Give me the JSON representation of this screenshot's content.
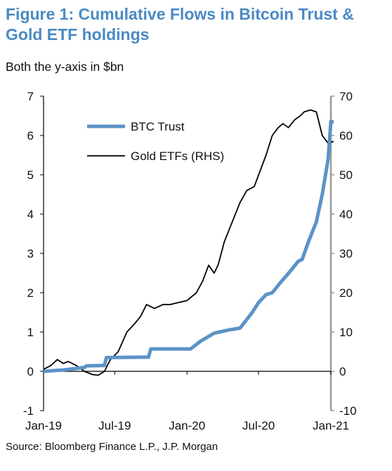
{
  "title": "Figure 1: Cumulative Flows in Bitcoin Trust & Gold ETF holdings",
  "subtitle": "Both the y-axis in $bn",
  "source": "Source:  Bloomberg Finance L.P., J.P. Morgan",
  "chart_data": {
    "type": "line",
    "x_ticks": [
      "Jan-19",
      "Jul-19",
      "Jan-20",
      "Jul-20",
      "Jan-21"
    ],
    "y_left": {
      "ylim": [
        -1,
        7
      ],
      "ticks": [
        "-1",
        "0",
        "1",
        "2",
        "3",
        "4",
        "5",
        "6",
        "7"
      ]
    },
    "y_right": {
      "ylim": [
        -10,
        70
      ],
      "ticks": [
        "-10",
        "0",
        "10",
        "20",
        "30",
        "40",
        "50",
        "60",
        "70"
      ]
    },
    "legend_position": "top-left",
    "grid": false,
    "colors": {
      "btc": "#5b93c8",
      "gold": "#000000",
      "right_axis": "#9a9a9a"
    },
    "series": [
      {
        "name": "BTC Trust",
        "axis": "left",
        "x": [
          "2019-01-01",
          "2019-02-15",
          "2019-03-15",
          "2019-04-15",
          "2019-04-20",
          "2019-06-05",
          "2019-06-10",
          "2019-09-25",
          "2019-10-01",
          "2020-01-10",
          "2020-02-05",
          "2020-03-10",
          "2020-04-15",
          "2020-05-15",
          "2020-06-15",
          "2020-07-01",
          "2020-07-20",
          "2020-08-05",
          "2020-08-25",
          "2020-09-20",
          "2020-10-10",
          "2020-10-20",
          "2020-11-05",
          "2020-11-25",
          "2020-12-10",
          "2020-12-25",
          "2021-01-01",
          "2021-01-08"
        ],
        "values": [
          0.0,
          0.03,
          0.06,
          0.1,
          0.14,
          0.15,
          0.35,
          0.36,
          0.57,
          0.57,
          0.77,
          0.97,
          1.05,
          1.1,
          1.5,
          1.75,
          1.95,
          2.0,
          2.25,
          2.55,
          2.8,
          2.85,
          3.3,
          3.8,
          4.5,
          5.4,
          6.35,
          6.35
        ]
      },
      {
        "name": "Gold ETFs (RHS)",
        "axis": "right",
        "x": [
          "2019-01-01",
          "2019-01-20",
          "2019-02-05",
          "2019-02-20",
          "2019-03-05",
          "2019-03-25",
          "2019-04-15",
          "2019-05-05",
          "2019-05-20",
          "2019-06-05",
          "2019-06-20",
          "2019-07-10",
          "2019-08-01",
          "2019-08-20",
          "2019-09-05",
          "2019-09-20",
          "2019-10-10",
          "2019-11-01",
          "2019-11-20",
          "2019-12-10",
          "2020-01-01",
          "2020-01-25",
          "2020-02-10",
          "2020-02-25",
          "2020-03-10",
          "2020-03-20",
          "2020-04-05",
          "2020-04-25",
          "2020-05-15",
          "2020-06-01",
          "2020-06-20",
          "2020-07-05",
          "2020-07-20",
          "2020-08-05",
          "2020-08-20",
          "2020-09-01",
          "2020-09-15",
          "2020-10-01",
          "2020-10-15",
          "2020-10-25",
          "2020-11-10",
          "2020-11-25",
          "2020-12-10",
          "2020-12-25",
          "2021-01-08"
        ],
        "values": [
          0.5,
          1.5,
          3.0,
          2.0,
          2.5,
          1.5,
          0.0,
          -0.8,
          -1.0,
          0.0,
          3.0,
          5.0,
          10.0,
          12.0,
          14.0,
          17.0,
          16.0,
          17.0,
          17.0,
          17.5,
          18.0,
          20.0,
          23.0,
          27.0,
          25.0,
          27.0,
          33.0,
          38.0,
          43.0,
          46.0,
          47.0,
          51.0,
          55.0,
          60.0,
          62.0,
          63.0,
          62.0,
          64.0,
          65.0,
          66.0,
          66.5,
          66.0,
          60.0,
          58.0,
          58.5
        ]
      }
    ]
  }
}
